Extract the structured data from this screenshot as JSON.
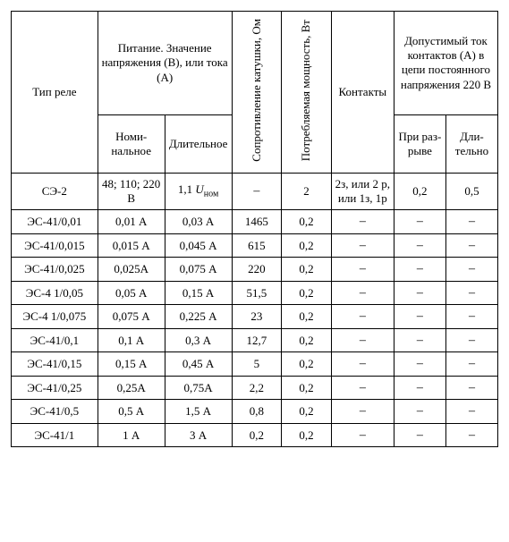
{
  "headers": {
    "type": "Тип реле",
    "supply_group": "Питание. Значение напряжения (В), или тока (А)",
    "nominal": "Номи­нальное",
    "durable": "Дли­тельное",
    "resistance": "Сопротивление катушки, Ом",
    "power": "Потребляемая мощность, Вт",
    "contacts": "Кон­такты",
    "current_group": "Допустимый ток контактов (А) в цепи постоянного напряжения 220 В",
    "at_break": "При раз­рыве",
    "long_term": "Дли­тельно"
  },
  "special_row": {
    "type": "СЭ-2",
    "nominal": "48; 110; 220 В",
    "durable_prefix": "1,1 ",
    "durable_var": "U",
    "durable_sub": "ном",
    "resistance": "–",
    "power": "2",
    "contacts": "2з, или 2 р, или 1з, 1р",
    "at_break": "0,2",
    "long_term": "0,5"
  },
  "rows": [
    {
      "type": "ЭС-41/0,01",
      "nom": "0,01 А",
      "dur": "0,03 А",
      "res": "1465",
      "pow": "0,2"
    },
    {
      "type": "ЭС-41/0,015",
      "nom": "0,015 А",
      "dur": "0,045 А",
      "res": "615",
      "pow": "0,2"
    },
    {
      "type": "ЭС-41/0,025",
      "nom": "0,025А",
      "dur": "0,075 А",
      "res": "220",
      "pow": "0,2"
    },
    {
      "type": "ЭС-4 1/0,05",
      "nom": "0,05 А",
      "dur": "0,15 А",
      "res": "51,5",
      "pow": "0,2"
    },
    {
      "type": "ЭС-4 1/0,075",
      "nom": "0,075 А",
      "dur": "0,225 А",
      "res": "23",
      "pow": "0,2"
    },
    {
      "type": "ЭС-41/0,1",
      "nom": "0,1 А",
      "dur": "0,3 А",
      "res": "12,7",
      "pow": "0,2"
    },
    {
      "type": "ЭС-41/0,15",
      "nom": "0,15 А",
      "dur": "0,45 А",
      "res": "5",
      "pow": "0,2"
    },
    {
      "type": "ЭС-41/0,25",
      "nom": "0,25А",
      "dur": "0,75А",
      "res": "2,2",
      "pow": "0,2"
    },
    {
      "type": "ЭС-41/0,5",
      "nom": "0,5 А",
      "dur": "1,5 А",
      "res": "0,8",
      "pow": "0,2"
    },
    {
      "type": "ЭС-41/1",
      "nom": "1 А",
      "dur": "3 А",
      "res": "0,2",
      "pow": "0,2"
    }
  ],
  "dash": "–"
}
